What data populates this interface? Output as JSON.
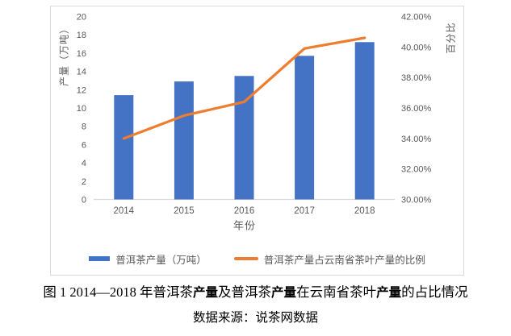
{
  "chart_data": {
    "type": "combo",
    "categories": [
      "2014",
      "2015",
      "2016",
      "2017",
      "2018"
    ],
    "series": [
      {
        "name": "普洱茶产量（万吨）",
        "type": "bar",
        "axis": "left",
        "color": "#4472C4",
        "values": [
          11.4,
          12.9,
          13.5,
          15.7,
          17.2
        ]
      },
      {
        "name": "普洱茶产量占云南省茶叶产量的比例",
        "type": "line",
        "axis": "right",
        "color": "#ED7D31",
        "values": [
          34.0,
          35.5,
          36.4,
          39.9,
          40.6
        ],
        "unit": "%"
      }
    ],
    "left_axis": {
      "title": "产量（万吨）",
      "min": 0,
      "max": 20,
      "step": 2
    },
    "right_axis": {
      "title": "百分比",
      "min": 30,
      "max": 42,
      "step": 2,
      "format": "percent",
      "decimals": 2
    },
    "x_axis": {
      "title": "年份"
    },
    "grid": false,
    "legend_position": "bottom",
    "colors": {
      "axis_text": "#595959",
      "frame_border": "#D9D9D9",
      "background": "#FFFFFF"
    }
  },
  "caption": {
    "segments": [
      {
        "text": "图 1 2014—2018 年普洱茶",
        "bold": false
      },
      {
        "text": "产量",
        "bold": true
      },
      {
        "text": "及普洱茶",
        "bold": false
      },
      {
        "text": "产量",
        "bold": true
      },
      {
        "text": "在云南省茶叶",
        "bold": false
      },
      {
        "text": "产量",
        "bold": true
      },
      {
        "text": "的占比情况",
        "bold": false
      }
    ]
  },
  "source_line": "数据来源：说茶网数据"
}
